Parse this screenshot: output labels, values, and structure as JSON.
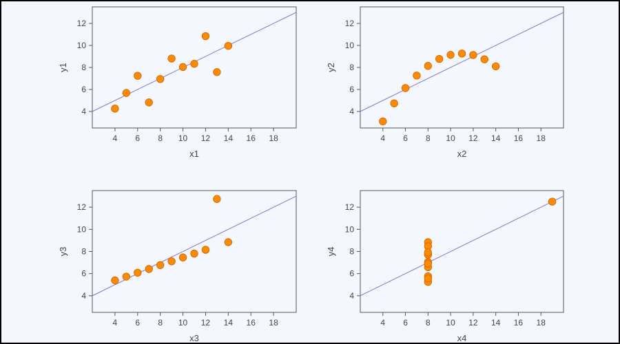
{
  "chart_data": [
    {
      "type": "scatter",
      "xlabel": "x1",
      "ylabel": "y1",
      "xlim": [
        2,
        20
      ],
      "ylim": [
        2.5,
        13.5
      ],
      "xticks": [
        4,
        6,
        8,
        10,
        12,
        14,
        16,
        18
      ],
      "yticks": [
        4,
        6,
        8,
        10,
        12
      ],
      "series": [
        {
          "x": [
            10,
            8,
            13,
            9,
            11,
            14,
            6,
            4,
            12,
            7,
            5
          ],
          "y": [
            8.04,
            6.95,
            7.58,
            8.81,
            8.33,
            9.96,
            7.24,
            4.26,
            10.84,
            4.82,
            5.68
          ]
        }
      ],
      "fit_line": {
        "intercept": 3.0,
        "slope": 0.5
      }
    },
    {
      "type": "scatter",
      "xlabel": "x2",
      "ylabel": "y2",
      "xlim": [
        2,
        20
      ],
      "ylim": [
        2.5,
        13.5
      ],
      "xticks": [
        4,
        6,
        8,
        10,
        12,
        14,
        16,
        18
      ],
      "yticks": [
        4,
        6,
        8,
        10,
        12
      ],
      "series": [
        {
          "x": [
            10,
            8,
            13,
            9,
            11,
            14,
            6,
            4,
            12,
            7,
            5
          ],
          "y": [
            9.14,
            8.14,
            8.74,
            8.77,
            9.26,
            8.1,
            6.13,
            3.1,
            9.13,
            7.26,
            4.74
          ]
        }
      ],
      "fit_line": {
        "intercept": 3.0,
        "slope": 0.5
      }
    },
    {
      "type": "scatter",
      "xlabel": "x3",
      "ylabel": "y3",
      "xlim": [
        2,
        20
      ],
      "ylim": [
        2.5,
        13.5
      ],
      "xticks": [
        4,
        6,
        8,
        10,
        12,
        14,
        16,
        18
      ],
      "yticks": [
        4,
        6,
        8,
        10,
        12
      ],
      "series": [
        {
          "x": [
            10,
            8,
            13,
            9,
            11,
            14,
            6,
            4,
            12,
            7,
            5
          ],
          "y": [
            7.46,
            6.77,
            12.74,
            7.11,
            7.81,
            8.84,
            6.08,
            5.39,
            8.15,
            6.42,
            5.73
          ]
        }
      ],
      "fit_line": {
        "intercept": 3.0,
        "slope": 0.5
      }
    },
    {
      "type": "scatter",
      "xlabel": "x4",
      "ylabel": "y4",
      "xlim": [
        2,
        20
      ],
      "ylim": [
        2.5,
        13.5
      ],
      "xticks": [
        4,
        6,
        8,
        10,
        12,
        14,
        16,
        18
      ],
      "yticks": [
        4,
        6,
        8,
        10,
        12
      ],
      "series": [
        {
          "x": [
            8,
            8,
            8,
            8,
            8,
            8,
            8,
            19,
            8,
            8,
            8
          ],
          "y": [
            6.58,
            5.76,
            7.71,
            8.84,
            8.47,
            7.04,
            5.25,
            12.5,
            5.56,
            7.91,
            6.89
          ]
        }
      ],
      "fit_line": {
        "intercept": 3.0,
        "slope": 0.5
      }
    }
  ],
  "colors": {
    "point_fill": "#ff8c00",
    "point_stroke": "#d46a00",
    "fit_line": "#7a7ad6",
    "axis": "#555555",
    "plot_background": "#f5f7ff"
  }
}
